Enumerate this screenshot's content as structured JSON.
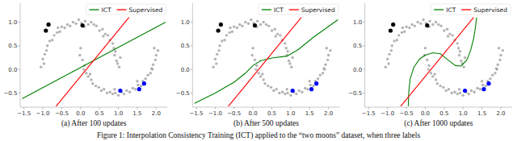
{
  "caption": "Figure 1: Interpolation Consistency Training (ICT) applied to the “two moons” dataset, when three labels",
  "chart_data": [
    {
      "type": "scatter",
      "title": "(a) After 100 updates",
      "xlim": [
        -1.6,
        2.3
      ],
      "ylim": [
        -0.8,
        1.4
      ],
      "xticks": [
        {
          "value": -1.5,
          "label": "−1.5"
        },
        {
          "value": -1,
          "label": "−1.0"
        },
        {
          "value": -0.5,
          "label": "−0.5"
        },
        {
          "value": 0,
          "label": "0.0"
        },
        0.5,
        {
          "value": 1,
          "label": "1.0"
        },
        1.5,
        {
          "value": 2,
          "label": "2.0"
        }
      ],
      "yticks": [
        {
          "value": -0.5,
          "label": "−0.5"
        },
        {
          "value": 0,
          "label": "0.0"
        },
        0.5,
        {
          "value": 1,
          "label": "1.0"
        }
      ],
      "legend": "upper right",
      "series": [
        {
          "type": "scatter",
          "color": "#9a9a9a",
          "x": [
            1.02,
            0.95,
            1.05,
            0.92,
            0.98,
            0.88,
            0.85,
            0.78,
            0.72,
            0.65,
            0.58,
            0.5,
            0.42,
            0.35,
            0.28,
            0.2,
            0.12,
            0.02,
            -0.05,
            -0.12,
            -0.2,
            -0.28,
            -0.35,
            -0.42,
            -0.5,
            -0.55,
            -0.62,
            -0.7,
            -0.75,
            -0.82,
            -0.88,
            -0.9,
            -0.95,
            -1.0,
            -0.97,
            -1.05,
            0.9,
            0.6,
            0.1,
            -0.6,
            0.0,
            -0.02,
            0.05,
            0.1,
            0.08,
            0.15,
            0.2,
            0.28,
            0.32,
            0.4,
            0.48,
            0.55,
            0.62,
            0.7,
            0.78,
            0.85,
            0.92,
            1.0,
            1.08,
            1.15,
            1.22,
            1.3,
            1.38,
            1.45,
            1.52,
            1.6,
            1.65,
            1.72,
            1.78,
            1.85,
            1.88,
            1.92,
            1.98,
            2.0,
            2.05,
            1.95,
            0.25,
            0.9,
            1.5,
            1.9
          ],
          "values": [
            0.05,
            0.18,
            0.25,
            0.38,
            0.12,
            0.45,
            0.55,
            0.62,
            0.72,
            0.75,
            0.85,
            0.82,
            0.92,
            0.95,
            1.0,
            0.95,
            1.02,
            0.98,
            1.05,
            0.97,
            1.0,
            0.92,
            0.95,
            0.88,
            0.9,
            0.8,
            0.78,
            0.72,
            0.62,
            0.6,
            0.5,
            0.4,
            0.32,
            0.22,
            0.12,
            0.05,
            0.3,
            0.7,
            0.9,
            0.88,
            0.45,
            0.3,
            0.2,
            0.08,
            0.0,
            -0.08,
            -0.15,
            -0.22,
            -0.3,
            -0.35,
            -0.38,
            -0.45,
            -0.42,
            -0.5,
            -0.48,
            -0.52,
            -0.5,
            -0.55,
            -0.48,
            -0.52,
            -0.45,
            -0.48,
            -0.4,
            -0.42,
            -0.33,
            -0.35,
            -0.25,
            -0.2,
            -0.12,
            -0.08,
            0.02,
            0.1,
            0.2,
            0.3,
            0.4,
            0.45,
            -0.1,
            -0.42,
            -0.25,
            0.0
          ]
        },
        {
          "type": "scatter",
          "color": "#000000",
          "x": [
            -0.85,
            -0.92,
            0.05
          ],
          "values": [
            0.95,
            0.82,
            0.93
          ]
        },
        {
          "type": "scatter",
          "color": "#0000ff",
          "x": [
            1.05,
            1.55,
            1.68
          ],
          "values": [
            -0.45,
            -0.42,
            -0.3
          ]
        },
        {
          "name": "ICT",
          "type": "line",
          "color": "#008000",
          "x": [
            -1.55,
            2.25
          ],
          "values": [
            -0.62,
            1.0
          ]
        },
        {
          "name": "Supervised",
          "type": "line",
          "color": "#ff0000",
          "x": [
            -0.65,
            1.28
          ],
          "values": [
            -0.78,
            1.1
          ]
        }
      ]
    },
    {
      "type": "scatter",
      "title": "(b) After 500 updates",
      "xlim": [
        -1.6,
        2.3
      ],
      "ylim": [
        -0.8,
        1.4
      ],
      "xticks": [
        {
          "value": -1.5,
          "label": "−1.5"
        },
        {
          "value": -1,
          "label": "−1.0"
        },
        {
          "value": -0.5,
          "label": "−0.5"
        },
        {
          "value": 0,
          "label": "0.0"
        },
        0.5,
        {
          "value": 1,
          "label": "1.0"
        },
        1.5,
        {
          "value": 2,
          "label": "2.0"
        }
      ],
      "yticks": [
        {
          "value": -0.5,
          "label": "−0.5"
        },
        {
          "value": 0,
          "label": "0.0"
        },
        0.5,
        {
          "value": 1,
          "label": "1.0"
        }
      ],
      "legend": "upper right",
      "series": [
        {
          "type": "scatter",
          "color": "#9a9a9a",
          "x": [
            1.02,
            0.95,
            1.05,
            0.92,
            0.98,
            0.88,
            0.85,
            0.78,
            0.72,
            0.65,
            0.58,
            0.5,
            0.42,
            0.35,
            0.28,
            0.2,
            0.12,
            0.02,
            -0.05,
            -0.12,
            -0.2,
            -0.28,
            -0.35,
            -0.42,
            -0.5,
            -0.55,
            -0.62,
            -0.7,
            -0.75,
            -0.82,
            -0.88,
            -0.9,
            -0.95,
            -1.0,
            -0.97,
            -1.05,
            0.9,
            0.6,
            0.1,
            -0.6,
            0.0,
            -0.02,
            0.05,
            0.1,
            0.08,
            0.15,
            0.2,
            0.28,
            0.32,
            0.4,
            0.48,
            0.55,
            0.62,
            0.7,
            0.78,
            0.85,
            0.92,
            1.0,
            1.08,
            1.15,
            1.22,
            1.3,
            1.38,
            1.45,
            1.52,
            1.6,
            1.65,
            1.72,
            1.78,
            1.85,
            1.88,
            1.92,
            1.98,
            2.0,
            2.05,
            1.95,
            0.25,
            0.9,
            1.5,
            1.9
          ],
          "values": [
            0.05,
            0.18,
            0.25,
            0.38,
            0.12,
            0.45,
            0.55,
            0.62,
            0.72,
            0.75,
            0.85,
            0.82,
            0.92,
            0.95,
            1.0,
            0.95,
            1.02,
            0.98,
            1.05,
            0.97,
            1.0,
            0.92,
            0.95,
            0.88,
            0.9,
            0.8,
            0.78,
            0.72,
            0.62,
            0.6,
            0.5,
            0.4,
            0.32,
            0.22,
            0.12,
            0.05,
            0.3,
            0.7,
            0.9,
            0.88,
            0.45,
            0.3,
            0.2,
            0.08,
            0.0,
            -0.08,
            -0.15,
            -0.22,
            -0.3,
            -0.35,
            -0.38,
            -0.45,
            -0.42,
            -0.5,
            -0.48,
            -0.52,
            -0.5,
            -0.55,
            -0.48,
            -0.52,
            -0.45,
            -0.48,
            -0.4,
            -0.42,
            -0.33,
            -0.35,
            -0.25,
            -0.2,
            -0.12,
            -0.08,
            0.02,
            0.1,
            0.2,
            0.3,
            0.4,
            0.45,
            -0.1,
            -0.42,
            -0.25,
            0.0
          ]
        },
        {
          "type": "scatter",
          "color": "#000000",
          "x": [
            -0.85,
            -0.92,
            0.05
          ],
          "values": [
            0.95,
            0.82,
            0.93
          ]
        },
        {
          "type": "scatter",
          "color": "#0000ff",
          "x": [
            1.05,
            1.55,
            1.68
          ],
          "values": [
            -0.45,
            -0.42,
            -0.3
          ]
        },
        {
          "name": "ICT",
          "type": "line",
          "color": "#008000",
          "x": [
            -1.55,
            -1.0,
            -0.5,
            -0.2,
            0.0,
            0.2,
            0.5,
            0.9,
            1.2,
            1.6,
            2.25
          ],
          "values": [
            -0.72,
            -0.5,
            -0.27,
            -0.08,
            0.08,
            0.18,
            0.24,
            0.28,
            0.42,
            0.68,
            1.05
          ]
        },
        {
          "name": "Supervised",
          "type": "line",
          "color": "#ff0000",
          "x": [
            -0.65,
            1.28
          ],
          "values": [
            -0.78,
            1.1
          ]
        }
      ]
    },
    {
      "type": "scatter",
      "title": "(c) After 1000 updates",
      "xlim": [
        -1.6,
        2.3
      ],
      "ylim": [
        -0.8,
        1.4
      ],
      "xticks": [
        {
          "value": -1.5,
          "label": "−1.5"
        },
        {
          "value": -1,
          "label": "−1.0"
        },
        {
          "value": -0.5,
          "label": "−0.5"
        },
        {
          "value": 0,
          "label": "0.0"
        },
        0.5,
        {
          "value": 1,
          "label": "1.0"
        },
        1.5,
        {
          "value": 2,
          "label": "2.0"
        }
      ],
      "yticks": [
        {
          "value": -0.5,
          "label": "−0.5"
        },
        {
          "value": 0,
          "label": "0.0"
        },
        0.5,
        {
          "value": 1,
          "label": "1.0"
        }
      ],
      "legend": "upper right",
      "series": [
        {
          "type": "scatter",
          "color": "#9a9a9a",
          "x": [
            1.02,
            0.95,
            1.05,
            0.92,
            0.98,
            0.88,
            0.85,
            0.78,
            0.72,
            0.65,
            0.58,
            0.5,
            0.42,
            0.35,
            0.28,
            0.2,
            0.12,
            0.02,
            -0.05,
            -0.12,
            -0.2,
            -0.28,
            -0.35,
            -0.42,
            -0.5,
            -0.55,
            -0.62,
            -0.7,
            -0.75,
            -0.82,
            -0.88,
            -0.9,
            -0.95,
            -1.0,
            -0.97,
            -1.05,
            0.9,
            0.6,
            0.1,
            -0.6,
            0.0,
            -0.02,
            0.05,
            0.1,
            0.08,
            0.15,
            0.2,
            0.28,
            0.32,
            0.4,
            0.48,
            0.55,
            0.62,
            0.7,
            0.78,
            0.85,
            0.92,
            1.0,
            1.08,
            1.15,
            1.22,
            1.3,
            1.38,
            1.45,
            1.52,
            1.6,
            1.65,
            1.72,
            1.78,
            1.85,
            1.88,
            1.92,
            1.98,
            2.0,
            2.05,
            1.95,
            0.25,
            0.9,
            1.5,
            1.9
          ],
          "values": [
            0.05,
            0.18,
            0.25,
            0.38,
            0.12,
            0.45,
            0.55,
            0.62,
            0.72,
            0.75,
            0.85,
            0.82,
            0.92,
            0.95,
            1.0,
            0.95,
            1.02,
            0.98,
            1.05,
            0.97,
            1.0,
            0.92,
            0.95,
            0.88,
            0.9,
            0.8,
            0.78,
            0.72,
            0.62,
            0.6,
            0.5,
            0.4,
            0.32,
            0.22,
            0.12,
            0.05,
            0.3,
            0.7,
            0.9,
            0.88,
            0.45,
            0.3,
            0.2,
            0.08,
            0.0,
            -0.08,
            -0.15,
            -0.22,
            -0.3,
            -0.35,
            -0.38,
            -0.45,
            -0.42,
            -0.5,
            -0.48,
            -0.52,
            -0.5,
            -0.55,
            -0.48,
            -0.52,
            -0.45,
            -0.48,
            -0.4,
            -0.42,
            -0.33,
            -0.35,
            -0.25,
            -0.2,
            -0.12,
            -0.08,
            0.02,
            0.1,
            0.2,
            0.3,
            0.4,
            0.45,
            -0.1,
            -0.42,
            -0.25,
            0.0
          ]
        },
        {
          "type": "scatter",
          "color": "#000000",
          "x": [
            -0.85,
            -0.92,
            0.05
          ],
          "values": [
            0.95,
            0.82,
            0.93
          ]
        },
        {
          "type": "scatter",
          "color": "#0000ff",
          "x": [
            1.05,
            1.55,
            1.68
          ],
          "values": [
            -0.45,
            -0.42,
            -0.3
          ]
        },
        {
          "name": "ICT",
          "type": "line",
          "color": "#008000",
          "x": [
            -0.45,
            -0.44,
            -0.4,
            -0.3,
            -0.15,
            0.0,
            0.2,
            0.4,
            0.6,
            0.8,
            0.95,
            1.1,
            1.2,
            1.28,
            1.33,
            1.36
          ],
          "values": [
            -0.78,
            -0.5,
            -0.2,
            0.05,
            0.22,
            0.3,
            0.35,
            0.33,
            0.2,
            0.08,
            0.07,
            0.2,
            0.4,
            0.65,
            0.9,
            1.1
          ]
        },
        {
          "name": "Supervised",
          "type": "line",
          "color": "#ff0000",
          "x": [
            -0.65,
            1.28
          ],
          "values": [
            -0.78,
            1.1
          ]
        }
      ]
    }
  ]
}
